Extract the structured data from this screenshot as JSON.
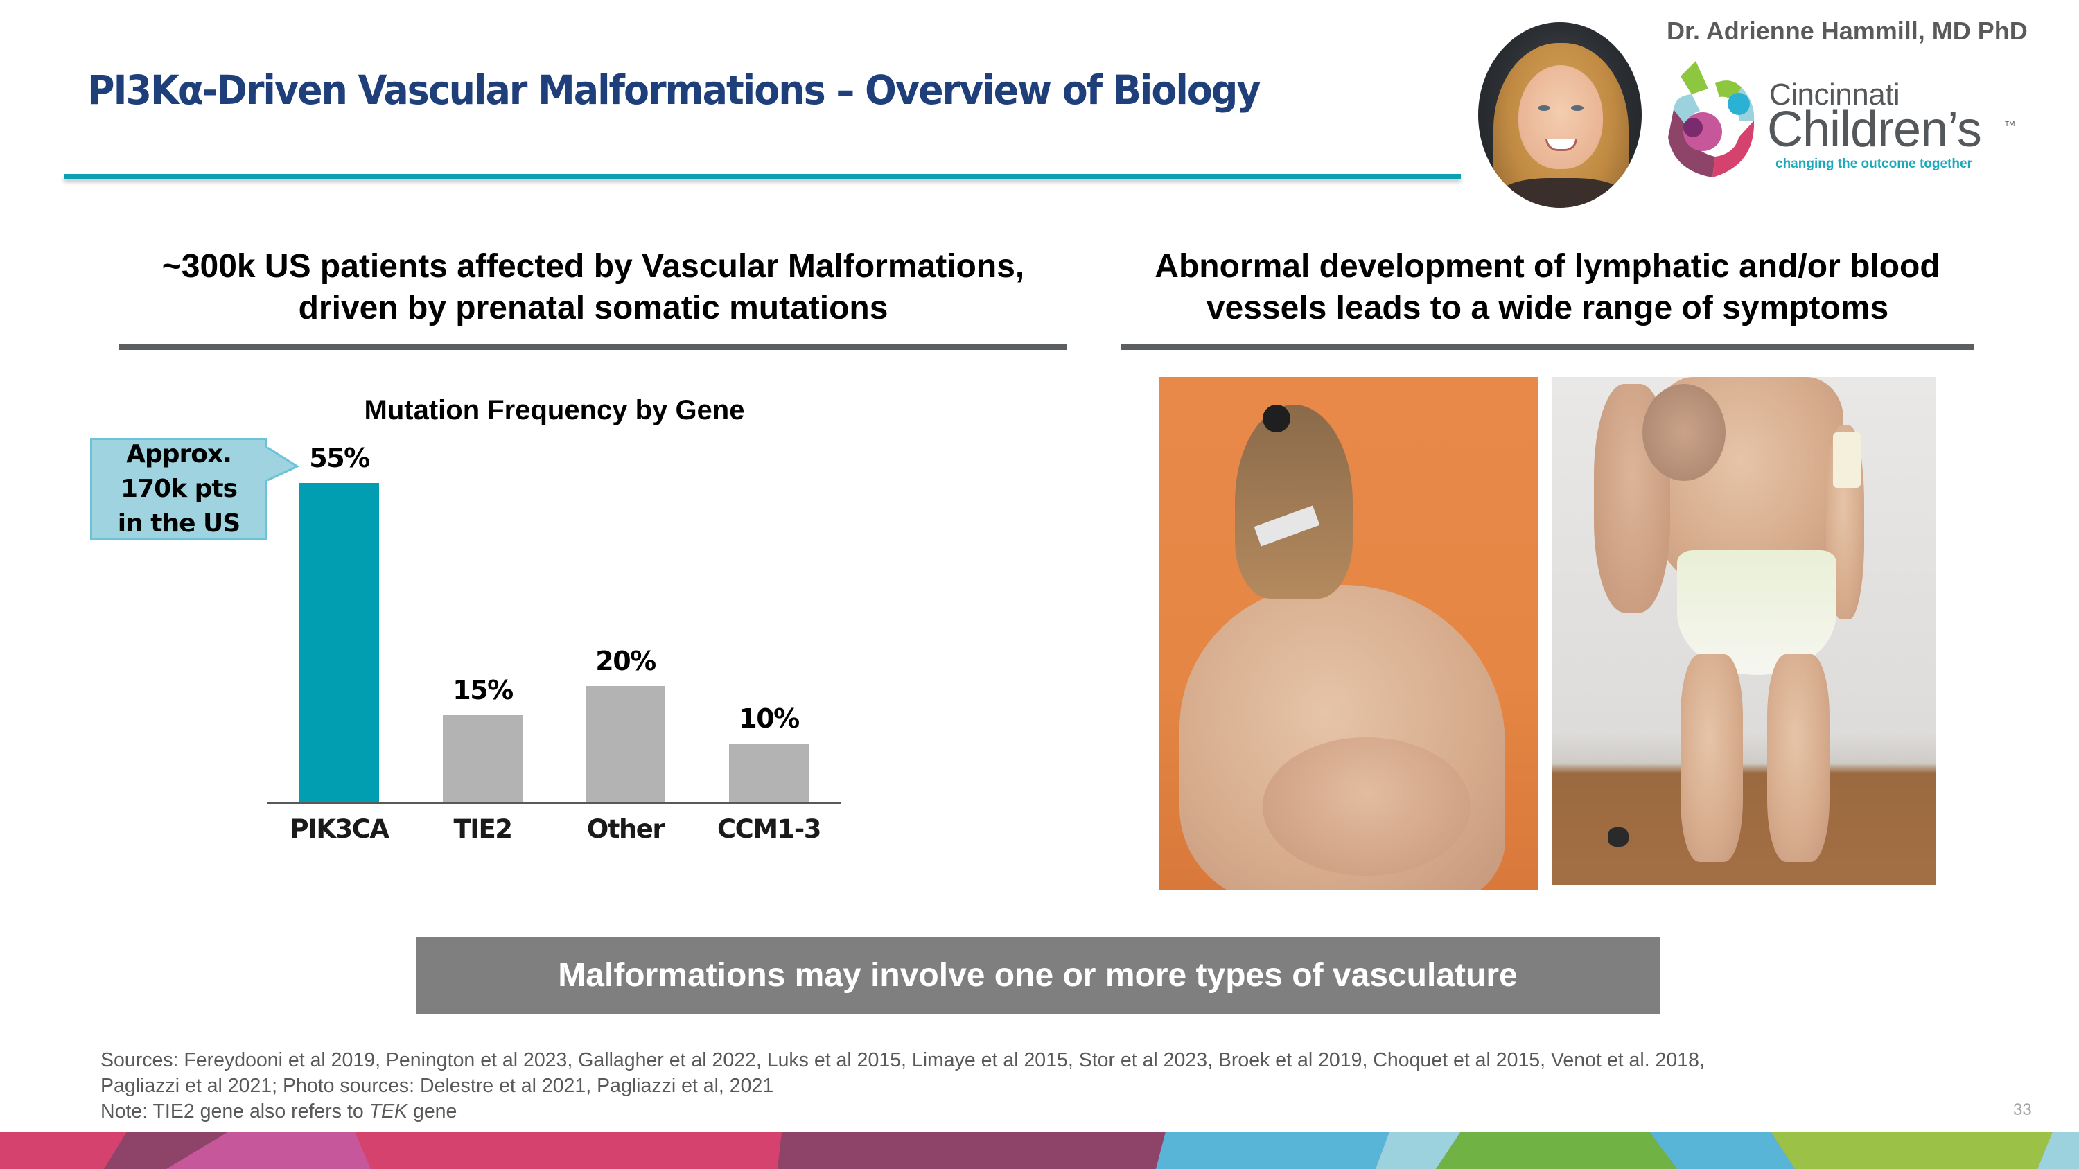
{
  "header": {
    "title": "PI3Kα-Driven Vascular Malformations – Overview of Biology",
    "presenter_name": "Dr. Adrienne Hammill, MD PhD",
    "logo": {
      "line1": "Cincinnati",
      "line2": "Children’s",
      "trademark": "TM",
      "tagline": "changing the outcome together"
    }
  },
  "left_section": {
    "headline_line1": "~300k US patients affected by Vascular Malformations,",
    "headline_line2": "driven by prenatal somatic mutations",
    "callout": {
      "line1": "Approx.",
      "line2": "170k pts",
      "line3": "in the US"
    }
  },
  "right_section": {
    "headline_line1": "Abnormal development of lymphatic and/or blood",
    "headline_line2": "vessels leads to a wide range of symptoms",
    "photos": [
      {
        "name": "patient-back-photo"
      },
      {
        "name": "patient-child-photo"
      }
    ]
  },
  "banner": {
    "text": "Malformations may involve one or more types of vasculature"
  },
  "footnotes": {
    "line1": "Sources: Fereydooni et al 2019, Penington et al 2023, Gallagher et al 2022, Luks et al 2015, Limaye et al 2015, Stor et al 2023, Broek et al 2019, Choquet et al 2015, Venot et al. 2018,",
    "line2": "Pagliazzi et al 2021;  Photo sources: Delestre et al 2021, Pagliazzi et al, 2021",
    "line3_prefix": "Note: TIE2 gene also refers to ",
    "line3_italic": "TEK",
    "line3_suffix": " gene"
  },
  "page_number": "33",
  "colors": {
    "title": "#1F3F7A",
    "accent_teal": "#0E9FB0",
    "bar_highlight": "#009EB0",
    "bar_default": "#B3B3B3",
    "callout_fill": "#9ED3DF",
    "banner": "#7F7F7F",
    "rule_gray": "#5B5F62",
    "footer_stripe": [
      "#D5426D",
      "#8E4468",
      "#C6579A",
      "#D5426D",
      "#8E4468",
      "#58B5D7",
      "#9BD2DE",
      "#70B244",
      "#58B5D7",
      "#9BC247"
    ]
  },
  "chart_data": {
    "type": "bar",
    "title": "Mutation Frequency by Gene",
    "categories": [
      "PIK3CA",
      "TIE2",
      "Other",
      "CCM1-3"
    ],
    "values": [
      55,
      15,
      20,
      10
    ],
    "value_labels": [
      "55%",
      "15%",
      "20%",
      "10%"
    ],
    "unit": "%",
    "xlabel": "",
    "ylabel": "",
    "ylim": [
      0,
      55
    ],
    "grid": false,
    "legend": null,
    "highlighted_category": "PIK3CA",
    "annotations": [
      "Approx. 170k pts in the US"
    ]
  }
}
